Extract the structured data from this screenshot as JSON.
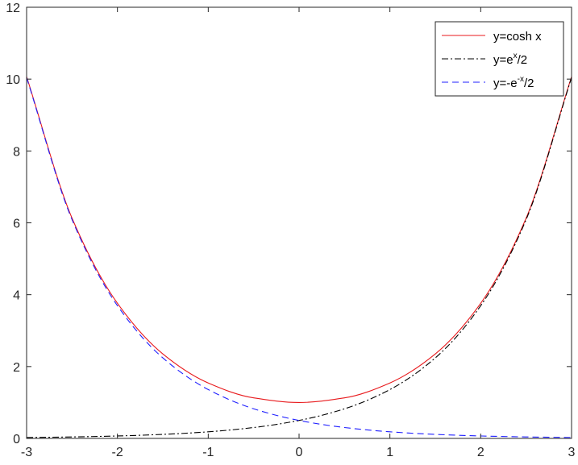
{
  "chart_data": {
    "type": "line",
    "title": "",
    "xlabel": "",
    "ylabel": "",
    "xlim": [
      -3,
      3
    ],
    "ylim": [
      0,
      12
    ],
    "x_ticks": [
      "-3",
      "-2",
      "-1",
      "0",
      "1",
      "2",
      "3"
    ],
    "y_ticks": [
      "0",
      "2",
      "4",
      "6",
      "8",
      "10",
      "12"
    ],
    "grid": false,
    "legend_position": "top-right",
    "x": [
      -3,
      -2.5,
      -2,
      -1.5,
      -1,
      -0.5,
      0,
      0.5,
      1,
      1.5,
      2,
      2.5,
      3
    ],
    "series": [
      {
        "name": "y=cosh x",
        "legend": {
          "base": "y=cosh x",
          "sup": "",
          "tail": ""
        },
        "color": "#e8191c",
        "dash": "solid",
        "values": [
          10.068,
          6.132,
          3.762,
          2.352,
          1.543,
          1.128,
          1.0,
          1.128,
          1.543,
          2.352,
          3.762,
          6.132,
          10.068
        ]
      },
      {
        "name": "y=e^x/2",
        "legend": {
          "base": "y=e",
          "sup": "x",
          "tail": "/2"
        },
        "color": "#000000",
        "dash": "dashdot",
        "values": [
          0.025,
          0.041,
          0.068,
          0.112,
          0.184,
          0.303,
          0.5,
          0.824,
          1.359,
          2.241,
          3.695,
          6.091,
          10.043
        ]
      },
      {
        "name": "y=-e^-x/2",
        "legend": {
          "base": "y=-e",
          "sup": "-x",
          "tail": "/2"
        },
        "color": "#1f1fff",
        "dash": "dashed",
        "values": [
          10.043,
          6.091,
          3.695,
          2.241,
          1.359,
          0.824,
          0.5,
          0.303,
          0.184,
          0.112,
          0.068,
          0.041,
          0.025
        ]
      }
    ]
  }
}
